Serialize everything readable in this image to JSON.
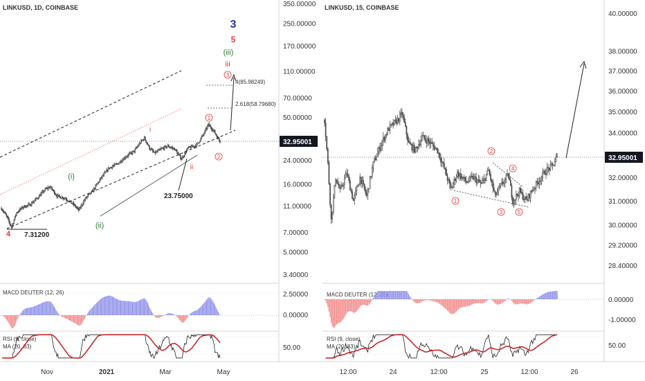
{
  "colors": {
    "candle": "#4a4a4a",
    "axis_text": "#333333",
    "price_tag_bg": "#131722",
    "price_tag_text": "#ffffff",
    "wave_red": "#e53935",
    "wave_green": "#2e7d32",
    "wave_navy": "#283593",
    "macd_pos": "#8e91e8",
    "macd_neg": "#f28b8b",
    "rsi_line": "#222222",
    "rsi_ma": "#c62828",
    "channel": "#222222",
    "channel_red": "#ef5350"
  },
  "left_chart": {
    "symbol": "LINKUSD, 1D, COINBASE",
    "current_price": "32.95001",
    "price_axis_ticks": [
      "350.00000",
      "250.00000",
      "170.00000",
      "110.00000",
      "70.00000",
      "50.00000",
      "32.95001",
      "24.00000",
      "16.00000",
      "11.00000",
      "7.00000",
      "5.00000",
      "3.40000"
    ],
    "time_axis_ticks": [
      "Nov",
      "2021",
      "Mar",
      "May"
    ],
    "wave_labels": {
      "degree_3": "3",
      "degree_5": "5",
      "iii_paren": "(iii)",
      "iii_red": "iii",
      "circle_3": "3",
      "circle_1": "1",
      "circle_2": "2",
      "i_red": "i",
      "ii_red": "ii",
      "i_green": "(i)",
      "ii_green": "(ii)",
      "four": "4"
    },
    "fib_labels": [
      "4(85.98249)",
      "2.618(58.79680)"
    ],
    "price_labels": [
      "23.75000",
      "7.31200"
    ],
    "macd": {
      "title": "MACD DEUTER (12, 26)",
      "ticks": [
        "2.50000",
        "0.00000"
      ]
    },
    "rsi": {
      "title": "RSI (9, close)",
      "ma_title": "MA (20, 83)",
      "ticks": [
        "50.00"
      ]
    }
  },
  "right_chart": {
    "symbol": "LINKUSD, 15, COINBASE",
    "current_price": "32.95001",
    "price_axis_ticks": [
      "40.00000",
      "38.00000",
      "37.00000",
      "36.00000",
      "35.00000",
      "34.00000",
      "32.95001",
      "32.00000",
      "31.00000",
      "30.00000",
      "29.20000",
      "28.40000"
    ],
    "time_axis_ticks": [
      "12:00",
      "24",
      "12:00",
      "25",
      "12:00",
      "26"
    ],
    "wave_labels": {
      "circle_1": "1",
      "circle_2": "2",
      "circle_3": "3",
      "circle_4": "4",
      "circle_5": "5"
    },
    "macd": {
      "title": "MACD DEUTER (12, 26)",
      "ticks": [
        "0.00000",
        "-1.00000"
      ]
    },
    "rsi": {
      "title": "RSI (9, close)",
      "ma_title": "MA (20, 83)",
      "ticks": [
        "50.00"
      ]
    }
  },
  "chart_data": [
    {
      "type": "candlestick",
      "title": "LINKUSD, 1D, COINBASE",
      "scale": "log",
      "ylim": [
        3.4,
        350
      ],
      "x_ticks": [
        "Nov",
        "2021",
        "Mar",
        "May"
      ],
      "price_anchors": [
        {
          "t": "Sep 2020",
          "price": 10.5
        },
        {
          "t": "Sep 2020 low",
          "price": 7.312
        },
        {
          "t": "Oct 2020",
          "price": 11.0
        },
        {
          "t": "Nov 2020 wave (i)",
          "price": 15.5
        },
        {
          "t": "Dec 2020 wave (ii)",
          "price": 10.0
        },
        {
          "t": "Jan 2021",
          "price": 22.0
        },
        {
          "t": "Feb 2021 wave i",
          "price": 35.0
        },
        {
          "t": "Mar 2021 wave ii",
          "price": 23.75
        },
        {
          "t": "Apr 2021",
          "price": 30.0
        },
        {
          "t": "late Apr 2021 wave 1",
          "price": 44.0
        },
        {
          "t": "May 2021 wave 2",
          "price": 32.95
        }
      ],
      "current_price": 32.95001,
      "fib_levels": [
        {
          "label": "4",
          "value": 85.98249
        },
        {
          "label": "2.618",
          "value": 58.7968
        }
      ],
      "projected_target": 110
    },
    {
      "type": "candlestick",
      "title": "LINKUSD, 15, COINBASE",
      "scale": "log",
      "ylim": [
        28.4,
        40.0
      ],
      "x_ticks": [
        "12:00",
        "24",
        "12:00",
        "25",
        "12:00",
        "26"
      ],
      "price_anchors": [
        {
          "t": "23 Apr early",
          "price": 34.6
        },
        {
          "t": "23 Apr",
          "price": 30.6
        },
        {
          "t": "23 Apr 12:00",
          "price": 32.2
        },
        {
          "t": "23 Apr late",
          "price": 33.5
        },
        {
          "t": "24 Apr",
          "price": 34.8
        },
        {
          "t": "24 Apr 12:00",
          "price": 33.6
        },
        {
          "t": "24 Apr wave 1",
          "price": 31.3
        },
        {
          "t": "24 Apr wave 2",
          "price": 32.5
        },
        {
          "t": "25 Apr wave 3",
          "price": 30.9
        },
        {
          "t": "25 Apr wave 4",
          "price": 31.6
        },
        {
          "t": "25 Apr wave 5",
          "price": 30.8
        },
        {
          "t": "25 Apr late",
          "price": 32.95
        }
      ],
      "current_price": 32.95001,
      "projected_target": 37.4
    }
  ]
}
